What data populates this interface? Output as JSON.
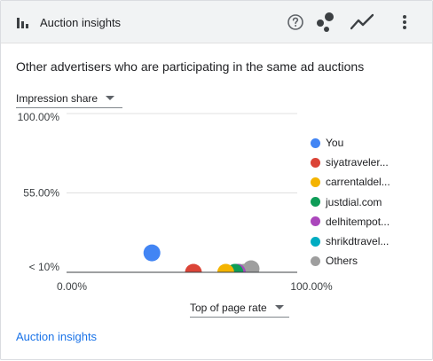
{
  "header": {
    "title": "Auction insights",
    "title_icon": "bar-chart-icon",
    "buttons": [
      "help-icon",
      "bubble-chart-icon",
      "trend-line-icon",
      "more-vert-icon"
    ]
  },
  "subtitle": "Other advertisers who are participating in the same ad auctions",
  "y_metric": "Impression share",
  "x_metric": "Top of page rate",
  "footer_link": "Auction insights",
  "colors": {
    "you": "#4285f4",
    "siya": "#db4437",
    "carrental": "#f4b400",
    "justdial": "#0f9d58",
    "delhi": "#ab47bc",
    "shrikd": "#00acc1",
    "others": "#9e9e9e",
    "link": "#1a73e8"
  },
  "chart_data": {
    "type": "scatter",
    "xlabel": "Top of page rate",
    "ylabel": "Impression share",
    "x_ticks": [
      "0.00%",
      "100.00%"
    ],
    "y_ticks": [
      "100.00%",
      "55.00%",
      "< 10%"
    ],
    "xlim": [
      0,
      100
    ],
    "ylim": [
      10,
      100
    ],
    "legend_position": "right",
    "series": [
      {
        "name": "You",
        "color": "#4285f4",
        "points": [
          {
            "x": 37,
            "y": 21
          }
        ]
      },
      {
        "name": "siyatraveler...",
        "color": "#db4437",
        "points": [
          {
            "x": 55,
            "y": 10
          }
        ]
      },
      {
        "name": "carrentaldel...",
        "color": "#f4b400",
        "points": [
          {
            "x": 69,
            "y": 10
          }
        ]
      },
      {
        "name": "justdial.com",
        "color": "#0f9d58",
        "points": [
          {
            "x": 73,
            "y": 10
          }
        ]
      },
      {
        "name": "delhitempot...",
        "color": "#ab47bc",
        "points": [
          {
            "x": 74,
            "y": 10
          }
        ]
      },
      {
        "name": "shrikdtravel...",
        "color": "#00acc1",
        "points": [
          {
            "x": 74,
            "y": 10
          }
        ]
      },
      {
        "name": "Others",
        "color": "#9e9e9e",
        "points": [
          {
            "x": 80,
            "y": 12
          },
          {
            "x": 77,
            "y": 10
          },
          {
            "x": 75,
            "y": 10
          }
        ]
      }
    ]
  }
}
